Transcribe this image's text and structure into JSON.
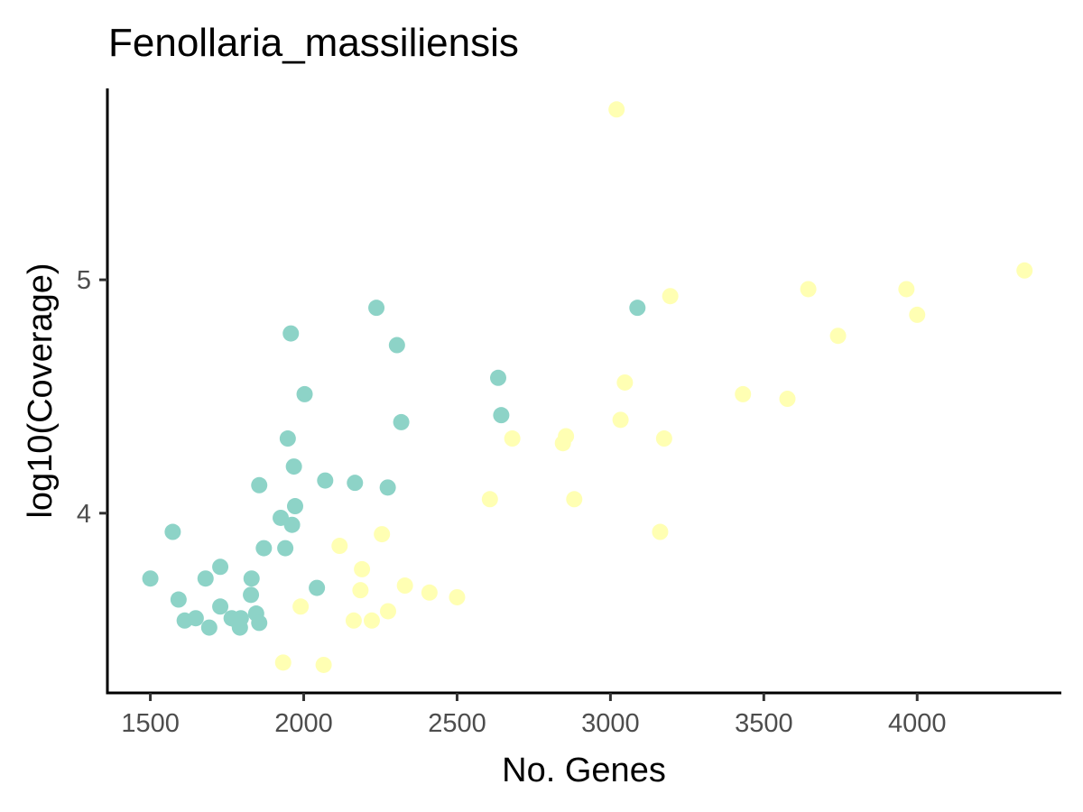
{
  "chart_data": {
    "type": "scatter",
    "title": "Fenollaria_massiliensis",
    "xlabel": "No. Genes",
    "ylabel": "log10(Coverage)",
    "xlim": [
      1360,
      4470
    ],
    "ylim": [
      3.23,
      5.82
    ],
    "x_ticks": [
      1500,
      2000,
      2500,
      3000,
      3500,
      4000
    ],
    "x_tick_labels": [
      "1500",
      "2000",
      "2500",
      "3000",
      "3500",
      "4000"
    ],
    "y_ticks": [
      4,
      5
    ],
    "y_tick_labels": [
      "4",
      "5"
    ],
    "grid": false,
    "legend": "none",
    "series": [
      {
        "color": "#8dd3c7",
        "points": [
          [
            1500,
            3.72
          ],
          [
            1573,
            3.92
          ],
          [
            1592,
            3.63
          ],
          [
            1612,
            3.54
          ],
          [
            1648,
            3.55
          ],
          [
            1680,
            3.72
          ],
          [
            1692,
            3.51
          ],
          [
            1728,
            3.6
          ],
          [
            1728,
            3.77
          ],
          [
            1765,
            3.55
          ],
          [
            1782,
            3.54
          ],
          [
            1792,
            3.51
          ],
          [
            1795,
            3.55
          ],
          [
            1828,
            3.65
          ],
          [
            1830,
            3.72
          ],
          [
            1845,
            3.57
          ],
          [
            1855,
            3.53
          ],
          [
            1855,
            4.12
          ],
          [
            1870,
            3.85
          ],
          [
            1925,
            3.98
          ],
          [
            1940,
            3.85
          ],
          [
            1948,
            4.32
          ],
          [
            1958,
            4.77
          ],
          [
            1962,
            3.95
          ],
          [
            1968,
            4.2
          ],
          [
            1972,
            4.03
          ],
          [
            2003,
            4.51
          ],
          [
            2043,
            3.68
          ],
          [
            2070,
            4.14
          ],
          [
            2167,
            4.13
          ],
          [
            2237,
            4.88
          ],
          [
            2274,
            4.11
          ],
          [
            2304,
            4.72
          ],
          [
            2318,
            4.39
          ],
          [
            2634,
            4.58
          ],
          [
            2644,
            4.42
          ],
          [
            3088,
            4.88
          ]
        ]
      },
      {
        "color": "#ffffb3",
        "points": [
          [
            1933,
            3.36
          ],
          [
            1990,
            3.6
          ],
          [
            2065,
            3.35
          ],
          [
            2117,
            3.86
          ],
          [
            2163,
            3.54
          ],
          [
            2185,
            3.67
          ],
          [
            2190,
            3.76
          ],
          [
            2222,
            3.54
          ],
          [
            2255,
            3.91
          ],
          [
            2275,
            3.58
          ],
          [
            2330,
            3.69
          ],
          [
            2410,
            3.66
          ],
          [
            2500,
            3.64
          ],
          [
            2607,
            4.06
          ],
          [
            2680,
            4.32
          ],
          [
            2845,
            4.3
          ],
          [
            2855,
            4.33
          ],
          [
            2882,
            4.06
          ],
          [
            3020,
            5.73
          ],
          [
            3033,
            4.4
          ],
          [
            3047,
            4.56
          ],
          [
            3162,
            3.92
          ],
          [
            3175,
            4.32
          ],
          [
            3195,
            4.93
          ],
          [
            3432,
            4.51
          ],
          [
            3577,
            4.49
          ],
          [
            3645,
            4.96
          ],
          [
            3742,
            4.76
          ],
          [
            3965,
            4.96
          ],
          [
            4000,
            4.85
          ],
          [
            4350,
            5.04
          ]
        ]
      }
    ]
  }
}
